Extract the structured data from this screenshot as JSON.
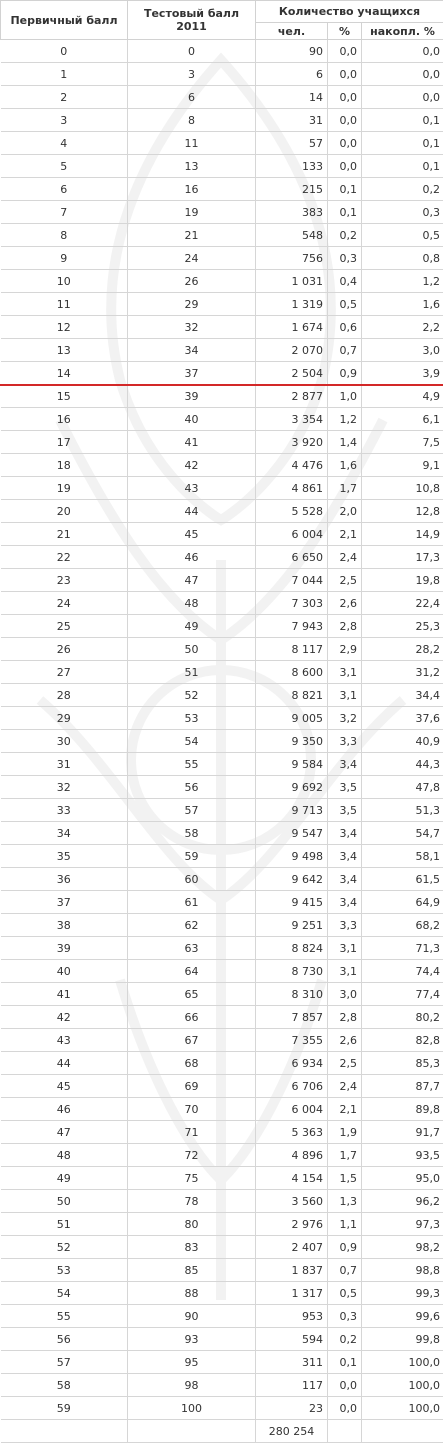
{
  "colors": {
    "threshold_line": "#d32828",
    "grid": "#d6d6d6",
    "text": "#333333"
  },
  "header": {
    "primary": "Первичный балл",
    "test": "Тестовый балл 2011",
    "count_group": "Количество учащихся",
    "people": "чел.",
    "percent": "%",
    "cumulative": "накопл. %"
  },
  "rows": [
    {
      "primary": "0",
      "test": "0",
      "count": "90",
      "pct": "0,0",
      "cum": "0,0"
    },
    {
      "primary": "1",
      "test": "3",
      "count": "6",
      "pct": "0,0",
      "cum": "0,0"
    },
    {
      "primary": "2",
      "test": "6",
      "count": "14",
      "pct": "0,0",
      "cum": "0,0"
    },
    {
      "primary": "3",
      "test": "8",
      "count": "31",
      "pct": "0,0",
      "cum": "0,1"
    },
    {
      "primary": "4",
      "test": "11",
      "count": "57",
      "pct": "0,0",
      "cum": "0,1"
    },
    {
      "primary": "5",
      "test": "13",
      "count": "133",
      "pct": "0,0",
      "cum": "0,1"
    },
    {
      "primary": "6",
      "test": "16",
      "count": "215",
      "pct": "0,1",
      "cum": "0,2"
    },
    {
      "primary": "7",
      "test": "19",
      "count": "383",
      "pct": "0,1",
      "cum": "0,3"
    },
    {
      "primary": "8",
      "test": "21",
      "count": "548",
      "pct": "0,2",
      "cum": "0,5"
    },
    {
      "primary": "9",
      "test": "24",
      "count": "756",
      "pct": "0,3",
      "cum": "0,8"
    },
    {
      "primary": "10",
      "test": "26",
      "count": "1 031",
      "pct": "0,4",
      "cum": "1,2"
    },
    {
      "primary": "11",
      "test": "29",
      "count": "1 319",
      "pct": "0,5",
      "cum": "1,6"
    },
    {
      "primary": "12",
      "test": "32",
      "count": "1 674",
      "pct": "0,6",
      "cum": "2,2"
    },
    {
      "primary": "13",
      "test": "34",
      "count": "2 070",
      "pct": "0,7",
      "cum": "3,0"
    },
    {
      "primary": "14",
      "test": "37",
      "count": "2 504",
      "pct": "0,9",
      "cum": "3,9"
    },
    {
      "primary": "15",
      "test": "39",
      "count": "2 877",
      "pct": "1,0",
      "cum": "4,9"
    },
    {
      "primary": "16",
      "test": "40",
      "count": "3 354",
      "pct": "1,2",
      "cum": "6,1"
    },
    {
      "primary": "17",
      "test": "41",
      "count": "3 920",
      "pct": "1,4",
      "cum": "7,5"
    },
    {
      "primary": "18",
      "test": "42",
      "count": "4 476",
      "pct": "1,6",
      "cum": "9,1"
    },
    {
      "primary": "19",
      "test": "43",
      "count": "4 861",
      "pct": "1,7",
      "cum": "10,8"
    },
    {
      "primary": "20",
      "test": "44",
      "count": "5 528",
      "pct": "2,0",
      "cum": "12,8"
    },
    {
      "primary": "21",
      "test": "45",
      "count": "6 004",
      "pct": "2,1",
      "cum": "14,9"
    },
    {
      "primary": "22",
      "test": "46",
      "count": "6 650",
      "pct": "2,4",
      "cum": "17,3"
    },
    {
      "primary": "23",
      "test": "47",
      "count": "7 044",
      "pct": "2,5",
      "cum": "19,8"
    },
    {
      "primary": "24",
      "test": "48",
      "count": "7 303",
      "pct": "2,6",
      "cum": "22,4"
    },
    {
      "primary": "25",
      "test": "49",
      "count": "7 943",
      "pct": "2,8",
      "cum": "25,3"
    },
    {
      "primary": "26",
      "test": "50",
      "count": "8 117",
      "pct": "2,9",
      "cum": "28,2"
    },
    {
      "primary": "27",
      "test": "51",
      "count": "8 600",
      "pct": "3,1",
      "cum": "31,2"
    },
    {
      "primary": "28",
      "test": "52",
      "count": "8 821",
      "pct": "3,1",
      "cum": "34,4"
    },
    {
      "primary": "29",
      "test": "53",
      "count": "9 005",
      "pct": "3,2",
      "cum": "37,6"
    },
    {
      "primary": "30",
      "test": "54",
      "count": "9 350",
      "pct": "3,3",
      "cum": "40,9"
    },
    {
      "primary": "31",
      "test": "55",
      "count": "9 584",
      "pct": "3,4",
      "cum": "44,3"
    },
    {
      "primary": "32",
      "test": "56",
      "count": "9 692",
      "pct": "3,5",
      "cum": "47,8"
    },
    {
      "primary": "33",
      "test": "57",
      "count": "9 713",
      "pct": "3,5",
      "cum": "51,3"
    },
    {
      "primary": "34",
      "test": "58",
      "count": "9 547",
      "pct": "3,4",
      "cum": "54,7"
    },
    {
      "primary": "35",
      "test": "59",
      "count": "9 498",
      "pct": "3,4",
      "cum": "58,1"
    },
    {
      "primary": "36",
      "test": "60",
      "count": "9 642",
      "pct": "3,4",
      "cum": "61,5"
    },
    {
      "primary": "37",
      "test": "61",
      "count": "9 415",
      "pct": "3,4",
      "cum": "64,9"
    },
    {
      "primary": "38",
      "test": "62",
      "count": "9 251",
      "pct": "3,3",
      "cum": "68,2"
    },
    {
      "primary": "39",
      "test": "63",
      "count": "8 824",
      "pct": "3,1",
      "cum": "71,3"
    },
    {
      "primary": "40",
      "test": "64",
      "count": "8 730",
      "pct": "3,1",
      "cum": "74,4"
    },
    {
      "primary": "41",
      "test": "65",
      "count": "8 310",
      "pct": "3,0",
      "cum": "77,4"
    },
    {
      "primary": "42",
      "test": "66",
      "count": "7 857",
      "pct": "2,8",
      "cum": "80,2"
    },
    {
      "primary": "43",
      "test": "67",
      "count": "7 355",
      "pct": "2,6",
      "cum": "82,8"
    },
    {
      "primary": "44",
      "test": "68",
      "count": "6 934",
      "pct": "2,5",
      "cum": "85,3"
    },
    {
      "primary": "45",
      "test": "69",
      "count": "6 706",
      "pct": "2,4",
      "cum": "87,7"
    },
    {
      "primary": "46",
      "test": "70",
      "count": "6 004",
      "pct": "2,1",
      "cum": "89,8"
    },
    {
      "primary": "47",
      "test": "71",
      "count": "5 363",
      "pct": "1,9",
      "cum": "91,7"
    },
    {
      "primary": "48",
      "test": "72",
      "count": "4 896",
      "pct": "1,7",
      "cum": "93,5"
    },
    {
      "primary": "49",
      "test": "75",
      "count": "4 154",
      "pct": "1,5",
      "cum": "95,0"
    },
    {
      "primary": "50",
      "test": "78",
      "count": "3 560",
      "pct": "1,3",
      "cum": "96,2"
    },
    {
      "primary": "51",
      "test": "80",
      "count": "2 976",
      "pct": "1,1",
      "cum": "97,3"
    },
    {
      "primary": "52",
      "test": "83",
      "count": "2 407",
      "pct": "0,9",
      "cum": "98,2"
    },
    {
      "primary": "53",
      "test": "85",
      "count": "1 837",
      "pct": "0,7",
      "cum": "98,8"
    },
    {
      "primary": "54",
      "test": "88",
      "count": "1 317",
      "pct": "0,5",
      "cum": "99,3"
    },
    {
      "primary": "55",
      "test": "90",
      "count": "953",
      "pct": "0,3",
      "cum": "99,6"
    },
    {
      "primary": "56",
      "test": "93",
      "count": "594",
      "pct": "0,2",
      "cum": "99,8"
    },
    {
      "primary": "57",
      "test": "95",
      "count": "311",
      "pct": "0,1",
      "cum": "100,0"
    },
    {
      "primary": "58",
      "test": "98",
      "count": "117",
      "pct": "0,0",
      "cum": "100,0"
    },
    {
      "primary": "59",
      "test": "100",
      "count": "23",
      "pct": "0,0",
      "cum": "100,0"
    }
  ],
  "total": "280 254"
}
